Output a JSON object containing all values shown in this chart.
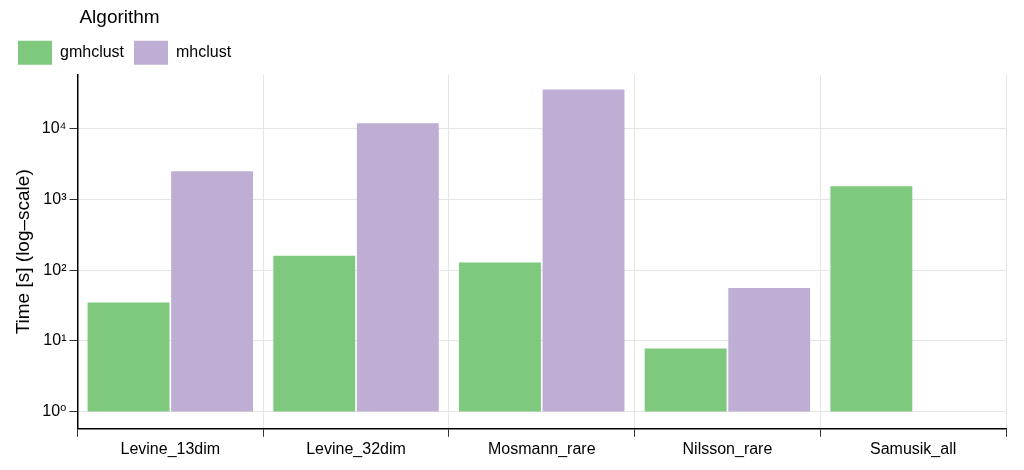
{
  "chart_data": {
    "type": "bar",
    "ylabel": "Time [s] (log–scale)",
    "legend_title": "Algorithm",
    "legend": "top left",
    "log": true,
    "grid": true,
    "categories": [
      "Levine_13dim",
      "Levine_32dim",
      "Mosmann_rare",
      "Nilsson_rare",
      "Samusik_all"
    ],
    "series": [
      {
        "name": "gmhclust",
        "color": "#7fc97f",
        "values": [
          34,
          159,
          127,
          6.8,
          1539
        ],
        "base": [
          1,
          1,
          1,
          1,
          1
        ]
      },
      {
        "name": "mhclust",
        "color": "#beaed4",
        "values": [
          2499,
          11999,
          35999,
          55,
          null
        ],
        "base": [
          1,
          1,
          1,
          1,
          null
        ]
      }
    ],
    "ylim": [
      0.57,
      58000
    ],
    "yticks": [
      {
        "value": 1,
        "label": "10⁰"
      },
      {
        "value": 10,
        "label": "10¹"
      },
      {
        "value": 100,
        "label": "10²"
      },
      {
        "value": 1000,
        "label": "10³"
      },
      {
        "value": 10000,
        "label": "10⁴"
      }
    ]
  }
}
